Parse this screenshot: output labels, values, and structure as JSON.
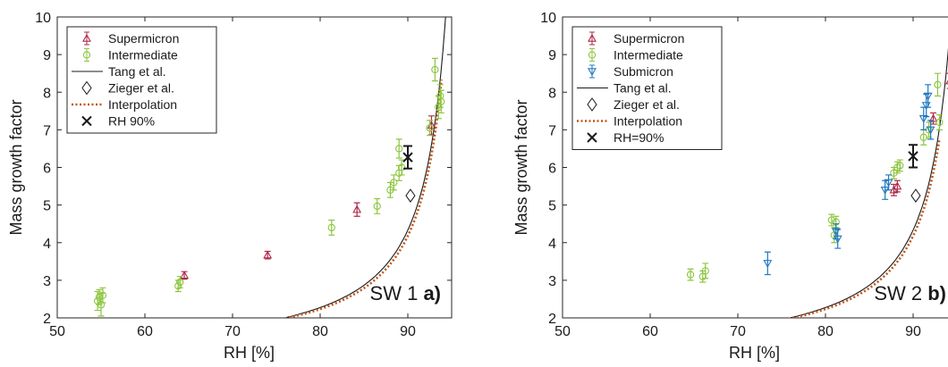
{
  "chart_data": [
    {
      "type": "scatter",
      "panel_label": "SW 1",
      "panel_letter": "a)",
      "xlabel": "RH [%]",
      "ylabel": "Mass growth factor",
      "xlim": [
        50,
        95
      ],
      "ylim": [
        2,
        10
      ],
      "xticks": [
        50,
        60,
        70,
        80,
        90
      ],
      "yticks": [
        2,
        3,
        4,
        5,
        6,
        7,
        8,
        9,
        10
      ],
      "legend": {
        "placement": "top-left",
        "entries": [
          {
            "label": "Supermicron",
            "kind": "triangle-up",
            "color": "#b0284a"
          },
          {
            "label": "Intermediate",
            "kind": "circle",
            "color": "#8cc63f"
          },
          {
            "label": "Tang et al.",
            "kind": "line",
            "color": "#1a1a1a"
          },
          {
            "label": "Zieger et al.",
            "kind": "diamond",
            "color": "#1a1a1a"
          },
          {
            "label": "Interpolation",
            "kind": "dotted",
            "color": "#c0561a"
          },
          {
            "label": "RH 90%",
            "kind": "cross",
            "color": "#1a1a1a"
          }
        ]
      },
      "series": [
        {
          "name": "Supermicron",
          "color": "#b0284a",
          "marker": "triangle-up",
          "points": [
            [
              64.5,
              3.13,
              0.1
            ],
            [
              74.0,
              3.67,
              0.1
            ],
            [
              84.2,
              4.88,
              0.18
            ],
            [
              92.7,
              7.12,
              0.25
            ]
          ]
        },
        {
          "name": "Intermediate",
          "color": "#8cc63f",
          "marker": "circle",
          "points": [
            [
              54.6,
              2.45,
              0.25
            ],
            [
              54.8,
              2.55,
              0.2
            ],
            [
              55.0,
              2.35,
              0.3
            ],
            [
              55.2,
              2.6,
              0.2
            ],
            [
              63.8,
              2.85,
              0.15
            ],
            [
              64.0,
              2.95,
              0.15
            ],
            [
              81.3,
              4.4,
              0.2
            ],
            [
              86.5,
              4.97,
              0.2
            ],
            [
              88.0,
              5.4,
              0.2
            ],
            [
              88.4,
              5.6,
              0.2
            ],
            [
              89.0,
              5.85,
              0.2
            ],
            [
              89.3,
              6.0,
              0.2
            ],
            [
              89.0,
              6.5,
              0.25
            ],
            [
              92.5,
              7.05,
              0.2
            ],
            [
              93.1,
              8.6,
              0.3
            ],
            [
              93.5,
              7.6,
              0.3
            ],
            [
              93.7,
              7.9,
              0.3
            ],
            [
              93.8,
              7.75,
              0.3
            ]
          ]
        },
        {
          "name": "Zieger et al.",
          "color": "#1a1a1a",
          "marker": "diamond",
          "points": [
            [
              90.3,
              5.25,
              0
            ]
          ]
        },
        {
          "name": "RH 90%",
          "color": "#1a1a1a",
          "marker": "cross",
          "points": [
            [
              90.0,
              6.27,
              0.3
            ]
          ]
        }
      ],
      "tang_curve": {
        "color": "#1a1a1a"
      },
      "interpolation": {
        "color": "#c0561a",
        "x_range": [
          54.6,
          94.0
        ]
      }
    },
    {
      "type": "scatter",
      "panel_label": "SW 2",
      "panel_letter": "b)",
      "xlabel": "RH [%]",
      "ylabel": "Mass growth factor",
      "xlim": [
        50,
        95
      ],
      "ylim": [
        2,
        10
      ],
      "xticks": [
        50,
        60,
        70,
        80,
        90
      ],
      "yticks": [
        2,
        3,
        4,
        5,
        6,
        7,
        8,
        9,
        10
      ],
      "legend": {
        "placement": "top-left",
        "entries": [
          {
            "label": "Supermicron",
            "kind": "triangle-up",
            "color": "#b0284a"
          },
          {
            "label": "Intermediate",
            "kind": "circle",
            "color": "#8cc63f"
          },
          {
            "label": "Submicron",
            "kind": "triangle-down",
            "color": "#1f78c1"
          },
          {
            "label": "Tang et al.",
            "kind": "line",
            "color": "#1a1a1a"
          },
          {
            "label": "Zieger et al.",
            "kind": "diamond",
            "color": "#1a1a1a"
          },
          {
            "label": "Interpolation",
            "kind": "dotted",
            "color": "#c0561a"
          },
          {
            "label": "RH=90%",
            "kind": "cross",
            "color": "#1a1a1a"
          }
        ]
      },
      "series": [
        {
          "name": "Supermicron",
          "color": "#b0284a",
          "marker": "triangle-up",
          "points": [
            [
              87.8,
              5.4,
              0.15
            ],
            [
              88.2,
              5.5,
              0.15
            ],
            [
              92.3,
              7.3,
              0.15
            ],
            [
              94.2,
              8.3,
              0.2
            ]
          ]
        },
        {
          "name": "Intermediate",
          "color": "#8cc63f",
          "marker": "circle",
          "points": [
            [
              64.6,
              3.15,
              0.15
            ],
            [
              66.0,
              3.1,
              0.15
            ],
            [
              66.3,
              3.25,
              0.2
            ],
            [
              80.7,
              4.6,
              0.15
            ],
            [
              81.2,
              4.55,
              0.15
            ],
            [
              81.0,
              4.2,
              0.2
            ],
            [
              87.8,
              5.85,
              0.15
            ],
            [
              88.2,
              6.0,
              0.15
            ],
            [
              88.5,
              6.05,
              0.15
            ],
            [
              91.2,
              6.8,
              0.2
            ],
            [
              91.8,
              7.0,
              0.2
            ],
            [
              92.8,
              8.2,
              0.3
            ],
            [
              93.0,
              7.2,
              0.2
            ]
          ]
        },
        {
          "name": "Submicron",
          "color": "#1f78c1",
          "marker": "triangle-down",
          "points": [
            [
              73.4,
              3.45,
              0.3
            ],
            [
              81.4,
              4.1,
              0.25
            ],
            [
              81.2,
              4.3,
              0.2
            ],
            [
              86.8,
              5.4,
              0.25
            ],
            [
              87.2,
              5.6,
              0.2
            ],
            [
              91.2,
              7.3,
              0.3
            ],
            [
              91.5,
              7.65,
              0.3
            ],
            [
              91.7,
              7.9,
              0.3
            ],
            [
              92.0,
              7.0,
              0.25
            ]
          ]
        },
        {
          "name": "Zieger et al.",
          "color": "#1a1a1a",
          "marker": "diamond",
          "points": [
            [
              90.3,
              5.25,
              0
            ]
          ]
        },
        {
          "name": "RH=90%",
          "color": "#1a1a1a",
          "marker": "cross",
          "points": [
            [
              90.0,
              6.3,
              0.3
            ]
          ]
        }
      ],
      "tang_curve": {
        "color": "#1a1a1a"
      },
      "interpolation": {
        "color": "#c0561a",
        "x_range": [
          64.0,
          93.0
        ]
      }
    }
  ]
}
